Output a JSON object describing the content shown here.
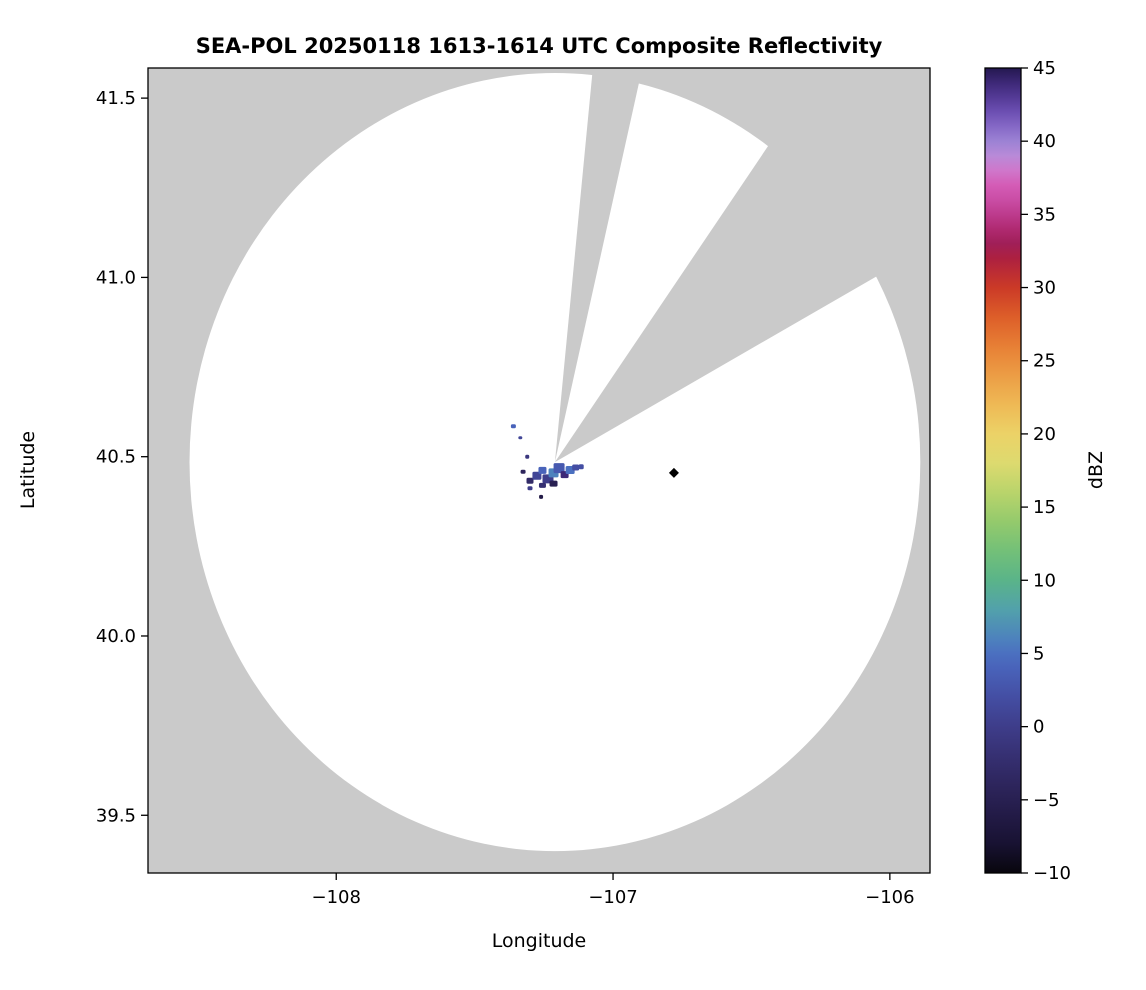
{
  "chart_data": {
    "type": "heatmap",
    "subtype": "radar-composite-reflectivity",
    "title": "SEA-POL 20250118 1613-1614 UTC Composite Reflectivity",
    "xlabel": "Longitude",
    "ylabel": "Latitude",
    "xlim": [
      -108.68,
      -105.855
    ],
    "ylim": [
      39.339,
      41.584
    ],
    "grid": false,
    "x_ticks": [
      {
        "v": -108,
        "label": "−108"
      },
      {
        "v": -107,
        "label": "−107"
      },
      {
        "v": -106,
        "label": "−106"
      }
    ],
    "y_ticks": [
      {
        "v": 41.5,
        "label": "41.5"
      },
      {
        "v": 41.0,
        "label": "41.0"
      },
      {
        "v": 40.5,
        "label": "40.5"
      },
      {
        "v": 40.0,
        "label": "40.0"
      },
      {
        "v": 39.5,
        "label": "39.5"
      }
    ],
    "colors": {
      "no_data": "#cacaca",
      "coverage": "#ffffff",
      "frame": "#000000",
      "background": "#ffffff"
    },
    "radar": {
      "center_lon": -107.21,
      "center_lat": 40.485,
      "radius_lon_deg": 1.32,
      "radius_lat_deg": 1.085,
      "blocked_sectors_deg": [
        {
          "start": 77.5,
          "end": 84.5
        },
        {
          "start": 30,
          "end": 56
        }
      ]
    },
    "echoes": [
      {
        "lon": -107.3,
        "lat": 40.433,
        "dbz": -3,
        "w": 7,
        "h": 6
      },
      {
        "lon": -107.275,
        "lat": 40.447,
        "dbz": 1,
        "w": 9,
        "h": 8
      },
      {
        "lon": -107.255,
        "lat": 40.462,
        "dbz": 4,
        "w": 8,
        "h": 7
      },
      {
        "lon": -107.235,
        "lat": 40.438,
        "dbz": 0,
        "w": 11,
        "h": 9
      },
      {
        "lon": -107.215,
        "lat": 40.455,
        "dbz": 6,
        "w": 10,
        "h": 9
      },
      {
        "lon": -107.195,
        "lat": 40.468,
        "dbz": 3,
        "w": 11,
        "h": 10
      },
      {
        "lon": -107.175,
        "lat": 40.45,
        "dbz": 44,
        "w": 8,
        "h": 7
      },
      {
        "lon": -107.155,
        "lat": 40.463,
        "dbz": 5,
        "w": 9,
        "h": 8
      },
      {
        "lon": -107.135,
        "lat": 40.47,
        "dbz": 2,
        "w": 7,
        "h": 6
      },
      {
        "lon": -107.215,
        "lat": 40.425,
        "dbz": -5,
        "w": 8,
        "h": 6
      },
      {
        "lon": -107.255,
        "lat": 40.42,
        "dbz": -2,
        "w": 7,
        "h": 5
      },
      {
        "lon": -107.36,
        "lat": 40.585,
        "dbz": 4,
        "w": 5,
        "h": 4
      },
      {
        "lon": -107.335,
        "lat": 40.553,
        "dbz": 1,
        "w": 4,
        "h": 3
      },
      {
        "lon": -107.31,
        "lat": 40.5,
        "dbz": -1,
        "w": 4,
        "h": 4
      },
      {
        "lon": -107.325,
        "lat": 40.458,
        "dbz": -4,
        "w": 5,
        "h": 4
      },
      {
        "lon": -107.3,
        "lat": 40.412,
        "dbz": 0,
        "w": 5,
        "h": 4
      },
      {
        "lon": -107.26,
        "lat": 40.388,
        "dbz": -6,
        "w": 4,
        "h": 4
      },
      {
        "lon": -107.115,
        "lat": 40.472,
        "dbz": 2,
        "w": 5,
        "h": 5
      }
    ],
    "marker": {
      "lon": -106.78,
      "lat": 40.455,
      "shape": "diamond",
      "color": "#000000",
      "size": 8
    },
    "colorbar": {
      "label": "dBZ",
      "position": "right",
      "min": -10,
      "max": 45,
      "ticks": [
        {
          "v": 45,
          "label": "45"
        },
        {
          "v": 40,
          "label": "40"
        },
        {
          "v": 35,
          "label": "35"
        },
        {
          "v": 30,
          "label": "30"
        },
        {
          "v": 25,
          "label": "25"
        },
        {
          "v": 20,
          "label": "20"
        },
        {
          "v": 15,
          "label": "15"
        },
        {
          "v": 10,
          "label": "10"
        },
        {
          "v": 5,
          "label": "5"
        },
        {
          "v": 0,
          "label": "0"
        },
        {
          "v": -5,
          "label": "−5"
        },
        {
          "v": -10,
          "label": "−10"
        }
      ],
      "stops": [
        {
          "v": -10,
          "c": "#08060d"
        },
        {
          "v": -8,
          "c": "#181232"
        },
        {
          "v": -6,
          "c": "#231b47"
        },
        {
          "v": -4,
          "c": "#2d255c"
        },
        {
          "v": -2,
          "c": "#363072"
        },
        {
          "v": 0,
          "c": "#3e3d8a"
        },
        {
          "v": 2,
          "c": "#444ea3"
        },
        {
          "v": 4,
          "c": "#4963ba"
        },
        {
          "v": 5,
          "c": "#4b70c0"
        },
        {
          "v": 6,
          "c": "#4d82bd"
        },
        {
          "v": 8,
          "c": "#52a1ab"
        },
        {
          "v": 10,
          "c": "#5ab489"
        },
        {
          "v": 12,
          "c": "#73c078"
        },
        {
          "v": 14,
          "c": "#94ca6c"
        },
        {
          "v": 16,
          "c": "#b9d46b"
        },
        {
          "v": 18,
          "c": "#ddda6f"
        },
        {
          "v": 20,
          "c": "#ecd267"
        },
        {
          "v": 22,
          "c": "#eeb955"
        },
        {
          "v": 24,
          "c": "#ec9d45"
        },
        {
          "v": 26,
          "c": "#e77f35"
        },
        {
          "v": 28,
          "c": "#dd5e29"
        },
        {
          "v": 30,
          "c": "#cb3a27"
        },
        {
          "v": 32,
          "c": "#ad2040"
        },
        {
          "v": 33,
          "c": "#a01f58"
        },
        {
          "v": 34,
          "c": "#b02a71"
        },
        {
          "v": 35,
          "c": "#bd3b8d"
        },
        {
          "v": 36,
          "c": "#ca4da5"
        },
        {
          "v": 37,
          "c": "#d45cb6"
        },
        {
          "v": 38,
          "c": "#cf77cb"
        },
        {
          "v": 39,
          "c": "#b98ad8"
        },
        {
          "v": 40,
          "c": "#9c82d4"
        },
        {
          "v": 41,
          "c": "#8568c6"
        },
        {
          "v": 42,
          "c": "#6c4fb2"
        },
        {
          "v": 43,
          "c": "#543a96"
        },
        {
          "v": 44,
          "c": "#3d2877"
        },
        {
          "v": 45,
          "c": "#241850"
        }
      ]
    }
  }
}
